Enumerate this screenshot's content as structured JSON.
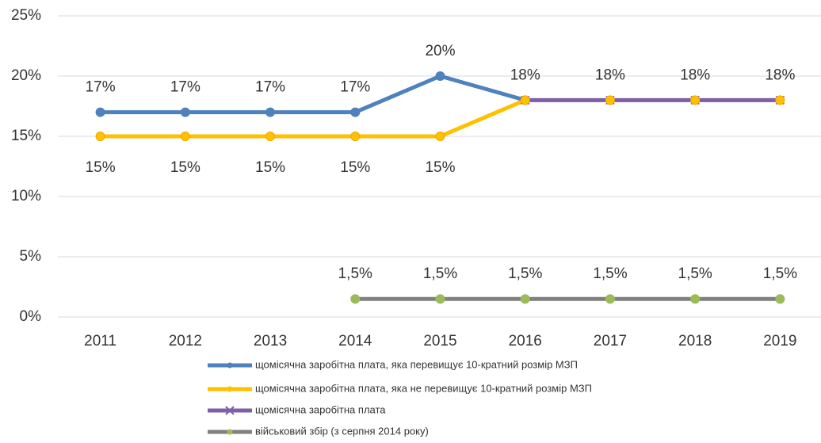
{
  "chart_data": {
    "type": "line",
    "categories": [
      "2011",
      "2012",
      "2013",
      "2014",
      "2015",
      "2016",
      "2017",
      "2018",
      "2019"
    ],
    "series": [
      {
        "name": "щомісячна заробітна плата, яка перевищує 10-кратний розмір МЗП",
        "color": "#4f81bd",
        "marker_color": "#4f81bd",
        "values": [
          17,
          17,
          17,
          17,
          20,
          18,
          null,
          null,
          null
        ],
        "value_labels": [
          "17%",
          "17%",
          "17%",
          "17%",
          "20%",
          null,
          null,
          null,
          null
        ]
      },
      {
        "name": "щомісячна заробітна плата, яка не перевищує 10-кратний розмір МЗП",
        "color": "#ffc000",
        "marker_color": "#ffc000",
        "values": [
          15,
          15,
          15,
          15,
          15,
          18,
          18,
          18,
          18
        ],
        "value_labels": [
          "15%",
          "15%",
          "15%",
          "15%",
          "15%",
          null,
          null,
          null,
          null
        ]
      },
      {
        "name": "щомісячна заробітна плата",
        "color": "#7f5fa8",
        "marker_color": "#7f5fa8",
        "values": [
          null,
          null,
          null,
          null,
          null,
          18,
          18,
          18,
          18
        ],
        "value_labels": [
          null,
          null,
          null,
          null,
          null,
          "18%",
          "18%",
          "18%",
          "18%"
        ]
      },
      {
        "name": "військовий збір (з серпня 2014 року)",
        "color": "#808080",
        "marker_color": "#9bbb59",
        "values": [
          null,
          null,
          null,
          1.5,
          1.5,
          1.5,
          1.5,
          1.5,
          1.5
        ],
        "value_labels": [
          null,
          null,
          null,
          "1,5%",
          "1,5%",
          "1,5%",
          "1,5%",
          "1,5%",
          "1,5%"
        ]
      }
    ],
    "ylim": [
      0,
      25
    ],
    "yticks": [
      {
        "value": 0,
        "label": "0%"
      },
      {
        "value": 5,
        "label": "5%"
      },
      {
        "value": 10,
        "label": "10%"
      },
      {
        "value": 15,
        "label": "15%"
      },
      {
        "value": 20,
        "label": "20%"
      },
      {
        "value": 25,
        "label": "25%"
      }
    ],
    "grid": true,
    "legend": "bottom"
  }
}
